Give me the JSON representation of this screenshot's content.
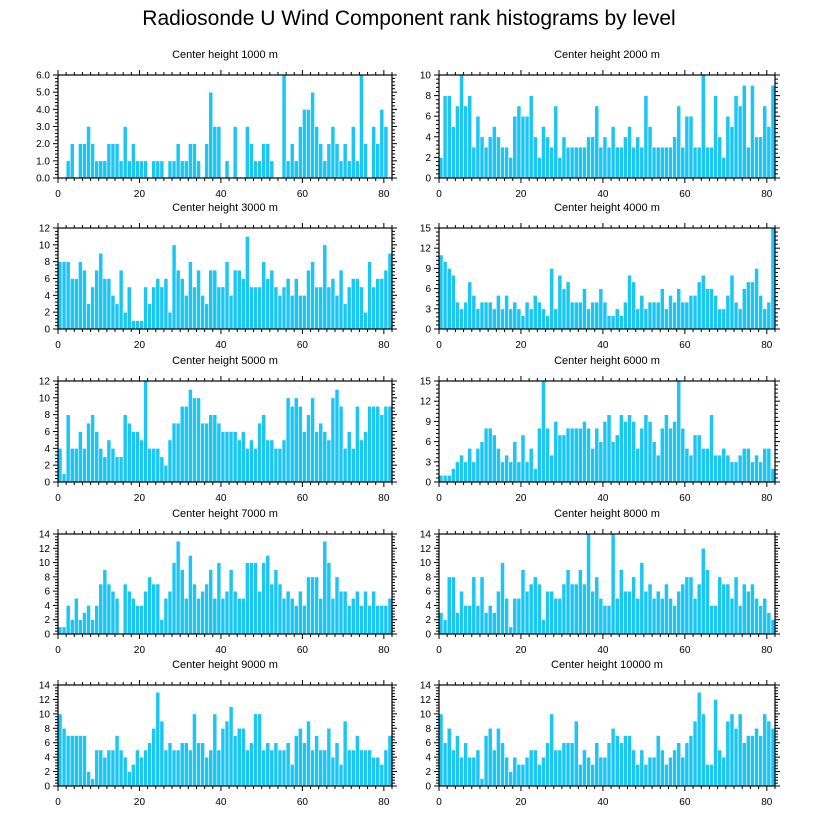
{
  "title": "Radiosonde U Wind Component rank histograms by level",
  "colors": {
    "bar": "#1bc6f5",
    "bar_edge": "#ffffff",
    "axis": "#000000"
  },
  "chart_data": [
    {
      "type": "bar",
      "title": "Center height 1000 m",
      "xlim": [
        0,
        82
      ],
      "ylim": [
        0,
        6
      ],
      "xticks": [
        0,
        20,
        40,
        60,
        80
      ],
      "yticks": [
        0,
        1,
        2,
        3,
        4,
        5,
        6
      ],
      "ytick_labels": [
        "0.0",
        "1.0",
        "2.0",
        "3.0",
        "4.0",
        "5.0",
        "6.0"
      ],
      "values": [
        0,
        0,
        1,
        2,
        0,
        2,
        2,
        3,
        2,
        1,
        1,
        1,
        2,
        2,
        2,
        1,
        3,
        1,
        2,
        1,
        1,
        1,
        0,
        1,
        1,
        1,
        0,
        1,
        1,
        2,
        1,
        1,
        2,
        2,
        1,
        0,
        2,
        5,
        3,
        3,
        0,
        1,
        0,
        3,
        0,
        0,
        3,
        2,
        1,
        1,
        2,
        2,
        1,
        0,
        0,
        6,
        1,
        2,
        1,
        3,
        4,
        4,
        5,
        3,
        2,
        1,
        2,
        3,
        2,
        1,
        2,
        1,
        3,
        1,
        6,
        2,
        0,
        3,
        2,
        4,
        3,
        0
      ]
    },
    {
      "type": "bar",
      "title": "Center height 2000 m",
      "xlim": [
        0,
        82
      ],
      "ylim": [
        0,
        10
      ],
      "xticks": [
        0,
        20,
        40,
        60,
        80
      ],
      "yticks": [
        0,
        2,
        4,
        6,
        8,
        10
      ],
      "ytick_labels": [
        "0",
        "2",
        "4",
        "6",
        "8",
        "10"
      ],
      "values": [
        2,
        8,
        8,
        5,
        7,
        10,
        7,
        8,
        3,
        6,
        4,
        3,
        4,
        5,
        4,
        3,
        3,
        2,
        6,
        7,
        6,
        6,
        8,
        4,
        2,
        5,
        4,
        3,
        7,
        2,
        4,
        3,
        3,
        3,
        3,
        3,
        4,
        4,
        7,
        3,
        4,
        3,
        5,
        3,
        3,
        4,
        5,
        3,
        4,
        3,
        8,
        5,
        3,
        3,
        3,
        3,
        3,
        4,
        7,
        3,
        6,
        6,
        3,
        3,
        10,
        3,
        3,
        8,
        4,
        2,
        6,
        5,
        8,
        7,
        9,
        3,
        9,
        4,
        4,
        7,
        5,
        9
      ]
    },
    {
      "type": "bar",
      "title": "Center height 3000 m",
      "xlim": [
        0,
        82
      ],
      "ylim": [
        0,
        12
      ],
      "xticks": [
        0,
        20,
        40,
        60,
        80
      ],
      "yticks": [
        0,
        2,
        4,
        6,
        8,
        10,
        12
      ],
      "ytick_labels": [
        "0",
        "2",
        "4",
        "6",
        "8",
        "10",
        "12"
      ],
      "values": [
        8,
        8,
        8,
        6,
        6,
        8,
        7,
        3,
        5,
        7,
        9,
        6,
        6,
        4,
        3,
        7,
        2,
        5,
        1,
        1,
        1,
        5,
        3,
        5,
        6,
        5,
        6,
        2,
        10,
        7,
        6,
        4,
        8,
        5,
        7,
        4,
        3,
        7,
        7,
        5,
        5,
        8,
        4,
        7,
        7,
        6,
        11,
        5,
        5,
        5,
        8,
        6,
        7,
        5,
        4,
        5,
        6,
        4,
        6,
        4,
        4,
        7,
        8,
        5,
        5,
        10,
        5,
        6,
        4,
        7,
        3,
        5,
        6,
        6,
        5,
        2,
        8,
        5,
        6,
        6,
        7,
        9
      ]
    },
    {
      "type": "bar",
      "title": "Center height 4000 m",
      "xlim": [
        0,
        82
      ],
      "ylim": [
        0,
        15
      ],
      "xticks": [
        0,
        20,
        40,
        60,
        80
      ],
      "yticks": [
        0,
        3,
        6,
        9,
        12,
        15
      ],
      "ytick_labels": [
        "0",
        "3",
        "6",
        "9",
        "12",
        "15"
      ],
      "values": [
        11,
        10,
        9,
        8,
        4,
        3,
        4,
        7,
        5,
        3,
        4,
        4,
        4,
        3,
        5,
        3,
        5,
        3,
        4,
        3,
        2,
        4,
        3,
        5,
        4,
        3,
        2,
        9,
        3,
        8,
        6,
        7,
        4,
        4,
        4,
        6,
        3,
        4,
        4,
        6,
        4,
        2,
        2,
        3,
        2,
        4,
        8,
        7,
        3,
        5,
        3,
        4,
        4,
        4,
        6,
        3,
        5,
        4,
        6,
        4,
        4,
        5,
        5,
        7,
        8,
        6,
        6,
        5,
        3,
        3,
        5,
        8,
        4,
        3,
        6,
        7,
        7,
        9,
        5,
        3,
        4,
        15
      ]
    },
    {
      "type": "bar",
      "title": "Center height 5000 m",
      "xlim": [
        0,
        82
      ],
      "ylim": [
        0,
        12
      ],
      "xticks": [
        0,
        20,
        40,
        60,
        80
      ],
      "yticks": [
        0,
        2,
        4,
        6,
        8,
        10,
        12
      ],
      "ytick_labels": [
        "0",
        "2",
        "4",
        "6",
        "8",
        "10",
        "12"
      ],
      "values": [
        4,
        1,
        8,
        4,
        4,
        6,
        4,
        7,
        8,
        6,
        4,
        3,
        5,
        4,
        3,
        3,
        8,
        7,
        6,
        6,
        5,
        12,
        4,
        4,
        4,
        3,
        2,
        5,
        7,
        7,
        9,
        9,
        11,
        10,
        10,
        7,
        7,
        8,
        8,
        7,
        6,
        6,
        6,
        6,
        5,
        6,
        4,
        5,
        4,
        7,
        8,
        5,
        5,
        4,
        4,
        5,
        10,
        9,
        10,
        9,
        6,
        8,
        10,
        6,
        7,
        6,
        5,
        10,
        11,
        9,
        4,
        6,
        4,
        9,
        5,
        6,
        9,
        9,
        9,
        8,
        9,
        9
      ]
    },
    {
      "type": "bar",
      "title": "Center height 6000 m",
      "xlim": [
        0,
        82
      ],
      "ylim": [
        0,
        15
      ],
      "xticks": [
        0,
        20,
        40,
        60,
        80
      ],
      "yticks": [
        0,
        3,
        6,
        9,
        12,
        15
      ],
      "ytick_labels": [
        "0",
        "3",
        "6",
        "9",
        "12",
        "15"
      ],
      "values": [
        1,
        1,
        1,
        2,
        3,
        4,
        3,
        5,
        3,
        5,
        6,
        8,
        8,
        7,
        5,
        3,
        4,
        3,
        6,
        3,
        7,
        3,
        5,
        2,
        8,
        15,
        8,
        4,
        9,
        7,
        7,
        8,
        8,
        8,
        8,
        9,
        8,
        5,
        8,
        6,
        9,
        10,
        6,
        7,
        10,
        9,
        10,
        9,
        5,
        8,
        10,
        9,
        6,
        4,
        8,
        10,
        8,
        9,
        15,
        8,
        5,
        4,
        7,
        7,
        5,
        5,
        10,
        4,
        4,
        5,
        4,
        3,
        3,
        4,
        5,
        5,
        3,
        4,
        3,
        5,
        5,
        2
      ]
    },
    {
      "type": "bar",
      "title": "Center height 7000 m",
      "xlim": [
        0,
        82
      ],
      "ylim": [
        0,
        14
      ],
      "xticks": [
        0,
        20,
        40,
        60,
        80
      ],
      "yticks": [
        0,
        2,
        4,
        6,
        8,
        10,
        12,
        14
      ],
      "ytick_labels": [
        "0",
        "2",
        "4",
        "6",
        "8",
        "10",
        "12",
        "14"
      ],
      "values": [
        1,
        1,
        4,
        2,
        5,
        2,
        3,
        4,
        2,
        4,
        7,
        9,
        7,
        6,
        5,
        0,
        7,
        6,
        5,
        4,
        4,
        6,
        8,
        7,
        7,
        2,
        5,
        6,
        10,
        13,
        9,
        5,
        11,
        7,
        5,
        6,
        7,
        9,
        5,
        10,
        5,
        6,
        9,
        6,
        5,
        5,
        10,
        10,
        10,
        6,
        10,
        11,
        7,
        9,
        7,
        5,
        6,
        5,
        4,
        6,
        4,
        8,
        8,
        8,
        5,
        13,
        10,
        5,
        8,
        6,
        6,
        4,
        5,
        6,
        4,
        6,
        4,
        6,
        4,
        4,
        4,
        5
      ]
    },
    {
      "type": "bar",
      "title": "Center height 8000 m",
      "xlim": [
        0,
        82
      ],
      "ylim": [
        0,
        14
      ],
      "xticks": [
        0,
        20,
        40,
        60,
        80
      ],
      "yticks": [
        0,
        2,
        4,
        6,
        8,
        10,
        12,
        14
      ],
      "ytick_labels": [
        "0",
        "2",
        "4",
        "6",
        "8",
        "10",
        "12",
        "14"
      ],
      "values": [
        3,
        2,
        8,
        8,
        3,
        6,
        4,
        4,
        8,
        4,
        8,
        3,
        4,
        3,
        6,
        10,
        5,
        1,
        5,
        5,
        9,
        6,
        7,
        8,
        7,
        2,
        6,
        6,
        5,
        5,
        7,
        9,
        7,
        7,
        9,
        7,
        14,
        6,
        8,
        5,
        4,
        4,
        14,
        5,
        9,
        6,
        6,
        8,
        5,
        10,
        6,
        7,
        5,
        6,
        5,
        7,
        5,
        4,
        6,
        7,
        8,
        8,
        5,
        7,
        12,
        9,
        4,
        4,
        8,
        7,
        7,
        5,
        8,
        4,
        7,
        6,
        7,
        5,
        4,
        5,
        3,
        2
      ]
    },
    {
      "type": "bar",
      "title": "Center height 9000 m",
      "xlim": [
        0,
        82
      ],
      "ylim": [
        0,
        14
      ],
      "xticks": [
        0,
        20,
        40,
        60,
        80
      ],
      "yticks": [
        0,
        2,
        4,
        6,
        8,
        10,
        12,
        14
      ],
      "ytick_labels": [
        "0",
        "2",
        "4",
        "6",
        "8",
        "10",
        "12",
        "14"
      ],
      "values": [
        10,
        8,
        7,
        7,
        7,
        7,
        7,
        2,
        1,
        5,
        5,
        4,
        5,
        5,
        7,
        5,
        4,
        2,
        3,
        5,
        4,
        5,
        6,
        8,
        13,
        9,
        5,
        6,
        5,
        5,
        6,
        6,
        5,
        10,
        6,
        6,
        4,
        5,
        10,
        5,
        8,
        9,
        11,
        7,
        8,
        8,
        5,
        6,
        10,
        10,
        5,
        6,
        5,
        6,
        5,
        5,
        6,
        3,
        7,
        8,
        6,
        9,
        5,
        7,
        5,
        5,
        8,
        4,
        6,
        3,
        9,
        5,
        5,
        7,
        5,
        5,
        5,
        4,
        4,
        3,
        5,
        7
      ]
    },
    {
      "type": "bar",
      "title": "Center height 10000 m",
      "xlim": [
        0,
        82
      ],
      "ylim": [
        0,
        14
      ],
      "xticks": [
        0,
        20,
        40,
        60,
        80
      ],
      "yticks": [
        0,
        2,
        4,
        6,
        8,
        10,
        12,
        14
      ],
      "ytick_labels": [
        "0",
        "2",
        "4",
        "6",
        "8",
        "10",
        "12",
        "14"
      ],
      "values": [
        10,
        6,
        8,
        5,
        7,
        4,
        6,
        4,
        4,
        5,
        1,
        7,
        8,
        5,
        8,
        6,
        4,
        2,
        4,
        3,
        3,
        4,
        5,
        5,
        3,
        4,
        6,
        10,
        5,
        5,
        6,
        6,
        6,
        9,
        3,
        5,
        4,
        3,
        6,
        4,
        4,
        6,
        8,
        7,
        6,
        7,
        7,
        5,
        3,
        5,
        3,
        4,
        4,
        7,
        5,
        3,
        4,
        5,
        6,
        4,
        6,
        7,
        9,
        13,
        10,
        3,
        3,
        12,
        5,
        4,
        9,
        10,
        8,
        10,
        6,
        7,
        7,
        8,
        7,
        10,
        9,
        8
      ]
    }
  ]
}
